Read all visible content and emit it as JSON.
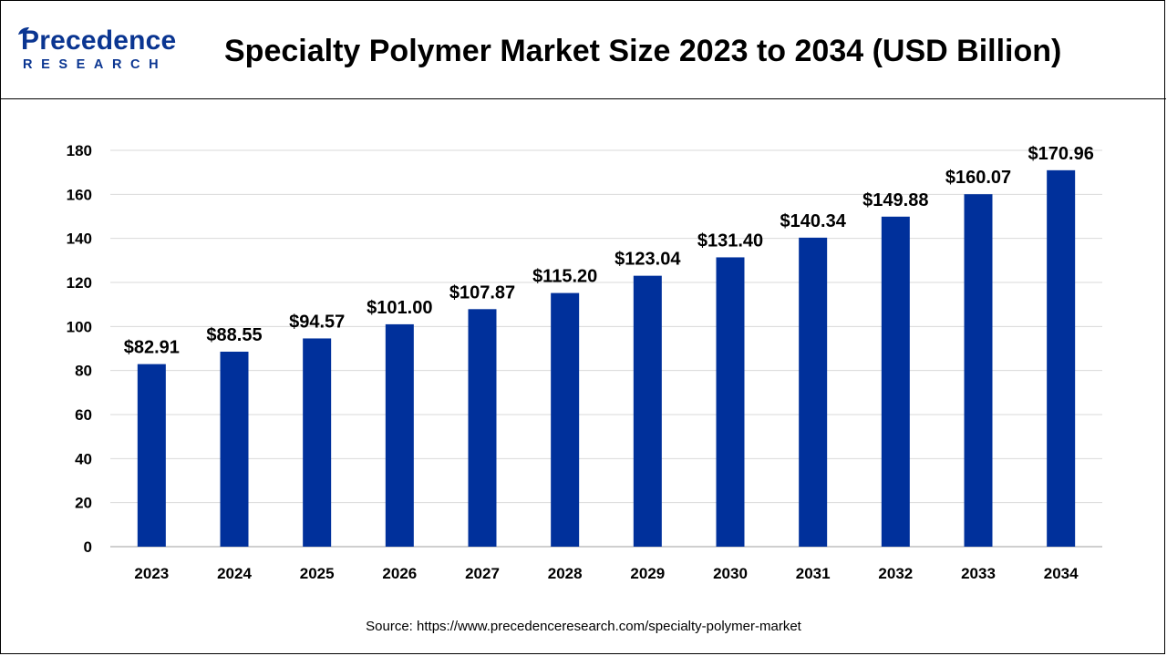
{
  "header": {
    "brand_top": "Precedence",
    "brand_bottom": "RESEARCH",
    "title": "Specialty Polymer Market Size 2023 to 2034 (USD Billion)"
  },
  "source": {
    "label": "Source: https://www.precedenceresearch.com/specialty-polymer-market"
  },
  "colors": {
    "bar": "#00309b",
    "brand": "#0a3591",
    "grid": "#d9d9d9"
  },
  "chart_data": {
    "type": "bar",
    "title": "Specialty Polymer Market Size 2023 to 2034 (USD Billion)",
    "xlabel": "",
    "ylabel": "",
    "categories": [
      "2023",
      "2024",
      "2025",
      "2026",
      "2027",
      "2028",
      "2029",
      "2030",
      "2031",
      "2032",
      "2033",
      "2034"
    ],
    "values": [
      82.91,
      88.55,
      94.57,
      101.0,
      107.87,
      115.2,
      123.04,
      131.4,
      140.34,
      149.88,
      160.07,
      170.96
    ],
    "data_labels": [
      "$82.91",
      "$88.55",
      "$94.57",
      "$101.00",
      "$107.87",
      "$115.20",
      "$123.04",
      "$131.40",
      "$140.34",
      "$149.88",
      "$160.07",
      "$170.96"
    ],
    "yticks": [
      0,
      20,
      40,
      60,
      80,
      100,
      120,
      140,
      160,
      180
    ],
    "ylim": [
      0,
      180
    ],
    "grid": true,
    "legend": "none"
  }
}
